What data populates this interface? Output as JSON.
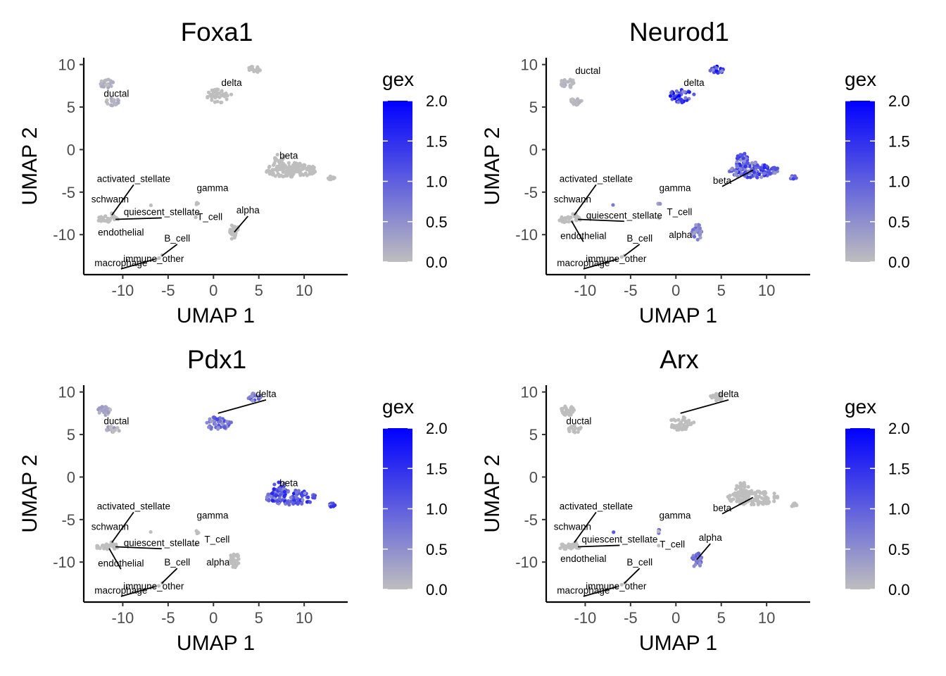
{
  "chart_data": [
    {
      "type": "scatter",
      "title": "Foxa1",
      "xlabel": "UMAP 1",
      "ylabel": "UMAP 2",
      "xlim": [
        -14.3,
        14.8
      ],
      "ylim": [
        -14.7,
        10.8
      ],
      "xticks": [
        -10,
        -5,
        0,
        5,
        10
      ],
      "yticks": [
        -10,
        -5,
        0,
        5,
        10
      ],
      "color_scale": {
        "title": "gex",
        "low": "#bebebe",
        "high": "#0000ff",
        "range": [
          0,
          2
        ],
        "ticks": [
          "0.0",
          "0.5",
          "1.0",
          "1.5",
          "2.0"
        ]
      },
      "clusters": [
        {
          "name": "ductal",
          "x": -11.0,
          "y": 7.2,
          "label_x": -10.7,
          "label_y": 6.2,
          "expr": 0.2
        },
        {
          "name": "delta",
          "x": 0.5,
          "y": 7.5,
          "label_x": 2.0,
          "label_y": 7.5,
          "expr": 0.0
        },
        {
          "name": "beta",
          "x": 8.5,
          "y": -2.4,
          "label_x": 8.3,
          "label_y": -1.1,
          "expr": 0.0
        },
        {
          "name": "activated_stellate",
          "x": -11.2,
          "y": -7.7,
          "label_x": -8.8,
          "label_y": -3.8,
          "expr": 0.0
        },
        {
          "name": "schwann",
          "x": -11.0,
          "y": -8.0,
          "label_x": -11.4,
          "label_y": -6.2,
          "expr": 0.0
        },
        {
          "name": "quiescent_stellate",
          "x": -10.8,
          "y": -8.2,
          "label_x": -5.7,
          "label_y": -7.7,
          "expr": 0.0
        },
        {
          "name": "endothelial",
          "x": -11.5,
          "y": -8.4,
          "label_x": -10.2,
          "label_y": -10.1,
          "expr": 0.0
        },
        {
          "name": "gamma",
          "x": -1.8,
          "y": -6.4,
          "label_x": -0.1,
          "label_y": -4.9,
          "expr": 0.0
        },
        {
          "name": "alpha",
          "x": 2.3,
          "y": -9.7,
          "label_x": 3.8,
          "label_y": -7.5,
          "expr": 0.0
        },
        {
          "name": "T_cell",
          "x": -1.9,
          "y": -8.0,
          "label_x": -0.4,
          "label_y": -8.3,
          "expr": 0.0
        },
        {
          "name": "B_cell",
          "x": -5.7,
          "y": -12.5,
          "label_x": -4.0,
          "label_y": -10.8,
          "expr": 0.0
        },
        {
          "name": "immune_other",
          "x": -6.0,
          "y": -12.7,
          "label_x": -6.6,
          "label_y": -13.2,
          "expr": 0.0
        },
        {
          "name": "macrophage",
          "x": -6.5,
          "y": -12.9,
          "label_x": -10.2,
          "label_y": -13.7,
          "expr": 0.0
        }
      ]
    },
    {
      "type": "scatter",
      "title": "Neurod1",
      "xlabel": "UMAP 1",
      "ylabel": "UMAP 2",
      "xlim": [
        -14.3,
        14.8
      ],
      "ylim": [
        -14.7,
        10.8
      ],
      "xticks": [
        -10,
        -5,
        0,
        5,
        10
      ],
      "yticks": [
        -10,
        -5,
        0,
        5,
        10
      ],
      "color_scale": {
        "title": "gex",
        "low": "#bebebe",
        "high": "#0000ff",
        "range": [
          0,
          2
        ],
        "ticks": [
          "0.0",
          "0.5",
          "1.0",
          "1.5",
          "2.0"
        ]
      },
      "clusters": [
        {
          "name": "ductal",
          "x": -11.0,
          "y": 7.2,
          "label_x": -9.7,
          "label_y": 8.9,
          "expr": 0.1
        },
        {
          "name": "delta",
          "x": 0.5,
          "y": 7.5,
          "label_x": 2.0,
          "label_y": 7.5,
          "expr": 1.4
        },
        {
          "name": "beta",
          "x": 8.5,
          "y": -2.4,
          "label_x": 5.1,
          "label_y": -4.0,
          "expr": 1.1
        },
        {
          "name": "activated_stellate",
          "x": -11.2,
          "y": -7.7,
          "label_x": -8.8,
          "label_y": -3.8,
          "expr": 0.0
        },
        {
          "name": "schwann",
          "x": -11.0,
          "y": -8.0,
          "label_x": -11.4,
          "label_y": -6.2,
          "expr": 0.1
        },
        {
          "name": "quiescent_stellate",
          "x": -10.8,
          "y": -8.2,
          "label_x": -5.7,
          "label_y": -8.1,
          "expr": 0.0
        },
        {
          "name": "endothelial",
          "x": -11.5,
          "y": -8.4,
          "label_x": -10.2,
          "label_y": -10.5,
          "expr": 0.0
        },
        {
          "name": "gamma",
          "x": -1.8,
          "y": -6.4,
          "label_x": -0.1,
          "label_y": -4.9,
          "expr": 0.6
        },
        {
          "name": "alpha",
          "x": 2.3,
          "y": -9.7,
          "label_x": 0.5,
          "label_y": -10.4,
          "expr": 0.7
        },
        {
          "name": "T_cell",
          "x": -1.9,
          "y": -8.0,
          "label_x": 0.4,
          "label_y": -7.7,
          "expr": 0.0
        },
        {
          "name": "B_cell",
          "x": -5.7,
          "y": -12.5,
          "label_x": -4.0,
          "label_y": -10.8,
          "expr": 0.0
        },
        {
          "name": "immune_other",
          "x": -6.0,
          "y": -12.7,
          "label_x": -6.6,
          "label_y": -13.2,
          "expr": 0.0
        },
        {
          "name": "macrophage",
          "x": -6.5,
          "y": -12.9,
          "label_x": -10.2,
          "label_y": -13.7,
          "expr": 0.0
        }
      ]
    },
    {
      "type": "scatter",
      "title": "Pdx1",
      "xlabel": "UMAP 1",
      "ylabel": "UMAP 2",
      "xlim": [
        -14.3,
        14.8
      ],
      "ylim": [
        -14.7,
        10.8
      ],
      "xticks": [
        -10,
        -5,
        0,
        5,
        10
      ],
      "yticks": [
        -10,
        -5,
        0,
        5,
        10
      ],
      "color_scale": {
        "title": "gex",
        "low": "#bebebe",
        "high": "#0000ff",
        "range": [
          0,
          2
        ],
        "ticks": [
          "0.0",
          "0.5",
          "1.0",
          "1.5",
          "2.0"
        ]
      },
      "clusters": [
        {
          "name": "ductal",
          "x": -11.0,
          "y": 7.2,
          "label_x": -10.7,
          "label_y": 6.2,
          "expr": 0.3
        },
        {
          "name": "delta",
          "x": 0.5,
          "y": 7.5,
          "label_x": 5.8,
          "label_y": 9.4,
          "expr": 0.9
        },
        {
          "name": "beta",
          "x": 8.5,
          "y": -2.4,
          "label_x": 8.3,
          "label_y": -1.1,
          "expr": 1.2
        },
        {
          "name": "activated_stellate",
          "x": -11.2,
          "y": -7.7,
          "label_x": -8.8,
          "label_y": -3.8,
          "expr": 0.0
        },
        {
          "name": "schwann",
          "x": -11.0,
          "y": -8.0,
          "label_x": -11.4,
          "label_y": -6.2,
          "expr": 0.0
        },
        {
          "name": "quiescent_stellate",
          "x": -10.8,
          "y": -8.2,
          "label_x": -5.7,
          "label_y": -8.1,
          "expr": 0.0
        },
        {
          "name": "endothelial",
          "x": -11.5,
          "y": -8.4,
          "label_x": -10.2,
          "label_y": -10.5,
          "expr": 0.0
        },
        {
          "name": "gamma",
          "x": -1.8,
          "y": -6.4,
          "label_x": -0.1,
          "label_y": -4.9,
          "expr": 0.0
        },
        {
          "name": "alpha",
          "x": 2.3,
          "y": -9.7,
          "label_x": 0.5,
          "label_y": -10.4,
          "expr": 0.0
        },
        {
          "name": "T_cell",
          "x": -1.9,
          "y": -8.0,
          "label_x": 0.4,
          "label_y": -7.7,
          "expr": 0.0
        },
        {
          "name": "B_cell",
          "x": -5.7,
          "y": -12.5,
          "label_x": -4.0,
          "label_y": -10.4,
          "expr": 0.0
        },
        {
          "name": "immune_other",
          "x": -6.0,
          "y": -12.7,
          "label_x": -6.6,
          "label_y": -13.2,
          "expr": 0.0
        },
        {
          "name": "macrophage",
          "x": -6.5,
          "y": -12.9,
          "label_x": -10.2,
          "label_y": -13.7,
          "expr": 0.0
        }
      ]
    },
    {
      "type": "scatter",
      "title": "Arx",
      "xlabel": "UMAP 1",
      "ylabel": "UMAP 2",
      "xlim": [
        -14.3,
        14.8
      ],
      "ylim": [
        -14.7,
        10.8
      ],
      "xticks": [
        -10,
        -5,
        0,
        5,
        10
      ],
      "yticks": [
        -10,
        -5,
        0,
        5,
        10
      ],
      "color_scale": {
        "title": "gex",
        "low": "#bebebe",
        "high": "#0000ff",
        "range": [
          0,
          2
        ],
        "ticks": [
          "0.0",
          "0.5",
          "1.0",
          "1.5",
          "2.0"
        ]
      },
      "clusters": [
        {
          "name": "ductal",
          "x": -11.0,
          "y": 7.2,
          "label_x": -10.7,
          "label_y": 6.2,
          "expr": 0.0
        },
        {
          "name": "delta",
          "x": 0.5,
          "y": 7.5,
          "label_x": 5.8,
          "label_y": 9.4,
          "expr": 0.0
        },
        {
          "name": "beta",
          "x": 8.5,
          "y": -2.4,
          "label_x": 5.1,
          "label_y": -4.0,
          "expr": 0.0
        },
        {
          "name": "activated_stellate",
          "x": -11.2,
          "y": -7.7,
          "label_x": -8.8,
          "label_y": -3.8,
          "expr": 0.0
        },
        {
          "name": "schwann",
          "x": -11.0,
          "y": -8.0,
          "label_x": -11.4,
          "label_y": -6.2,
          "expr": 0.0
        },
        {
          "name": "quiescent_stellate",
          "x": -10.8,
          "y": -8.2,
          "label_x": -6.2,
          "label_y": -7.7,
          "expr": 0.0
        },
        {
          "name": "endothelial",
          "x": -11.5,
          "y": -8.4,
          "label_x": -10.2,
          "label_y": -10.0,
          "expr": 0.0
        },
        {
          "name": "gamma",
          "x": -1.8,
          "y": -6.4,
          "label_x": -0.1,
          "label_y": -4.9,
          "expr": 0.8
        },
        {
          "name": "alpha",
          "x": 2.3,
          "y": -9.7,
          "label_x": 3.8,
          "label_y": -7.5,
          "expr": 0.9
        },
        {
          "name": "T_cell",
          "x": -1.9,
          "y": -8.0,
          "label_x": -0.4,
          "label_y": -8.3,
          "expr": 0.0
        },
        {
          "name": "B_cell",
          "x": -5.7,
          "y": -12.5,
          "label_x": -4.0,
          "label_y": -10.4,
          "expr": 0.0
        },
        {
          "name": "immune_other",
          "x": -6.0,
          "y": -12.7,
          "label_x": -6.6,
          "label_y": -13.2,
          "expr": 0.0
        },
        {
          "name": "macrophage",
          "x": -6.5,
          "y": -12.9,
          "label_x": -10.2,
          "label_y": -13.7,
          "expr": 0.0
        }
      ]
    }
  ]
}
